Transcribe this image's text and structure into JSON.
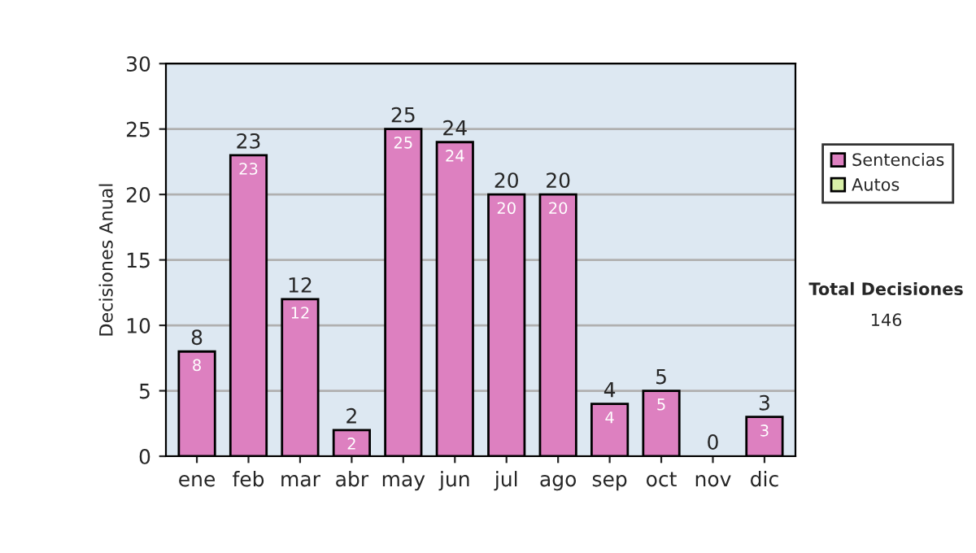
{
  "chart_data": {
    "type": "bar",
    "stacked": true,
    "ylabel": "Decisiones Anual",
    "categories": [
      "ene",
      "feb",
      "mar",
      "abr",
      "may",
      "jun",
      "jul",
      "ago",
      "sep",
      "oct",
      "nov",
      "dic"
    ],
    "series": [
      {
        "name": "Sentencias",
        "color": "#dd80c0",
        "values": [
          8,
          23,
          12,
          2,
          25,
          24,
          20,
          20,
          4,
          5,
          0,
          3
        ],
        "value_labels": [
          "8",
          "23",
          "12",
          "2",
          "25",
          "24",
          "20",
          "20",
          "4",
          "5",
          null,
          "3"
        ]
      },
      {
        "name": "Autos",
        "color": "#d8f0a8",
        "values": [
          0,
          0,
          0,
          0,
          0,
          0,
          0,
          0,
          0,
          0,
          0,
          0
        ]
      }
    ],
    "totals": [
      "8",
      "23",
      "12",
      "2",
      "25",
      "24",
      "20",
      "20",
      "4",
      "5",
      "0",
      "3"
    ],
    "ylim": [
      0,
      30
    ],
    "yticks": [
      0,
      5,
      10,
      15,
      20,
      25,
      30
    ],
    "grid": "y",
    "legend": "right",
    "annotations": [
      "Total Decisiones",
      "146"
    ]
  }
}
